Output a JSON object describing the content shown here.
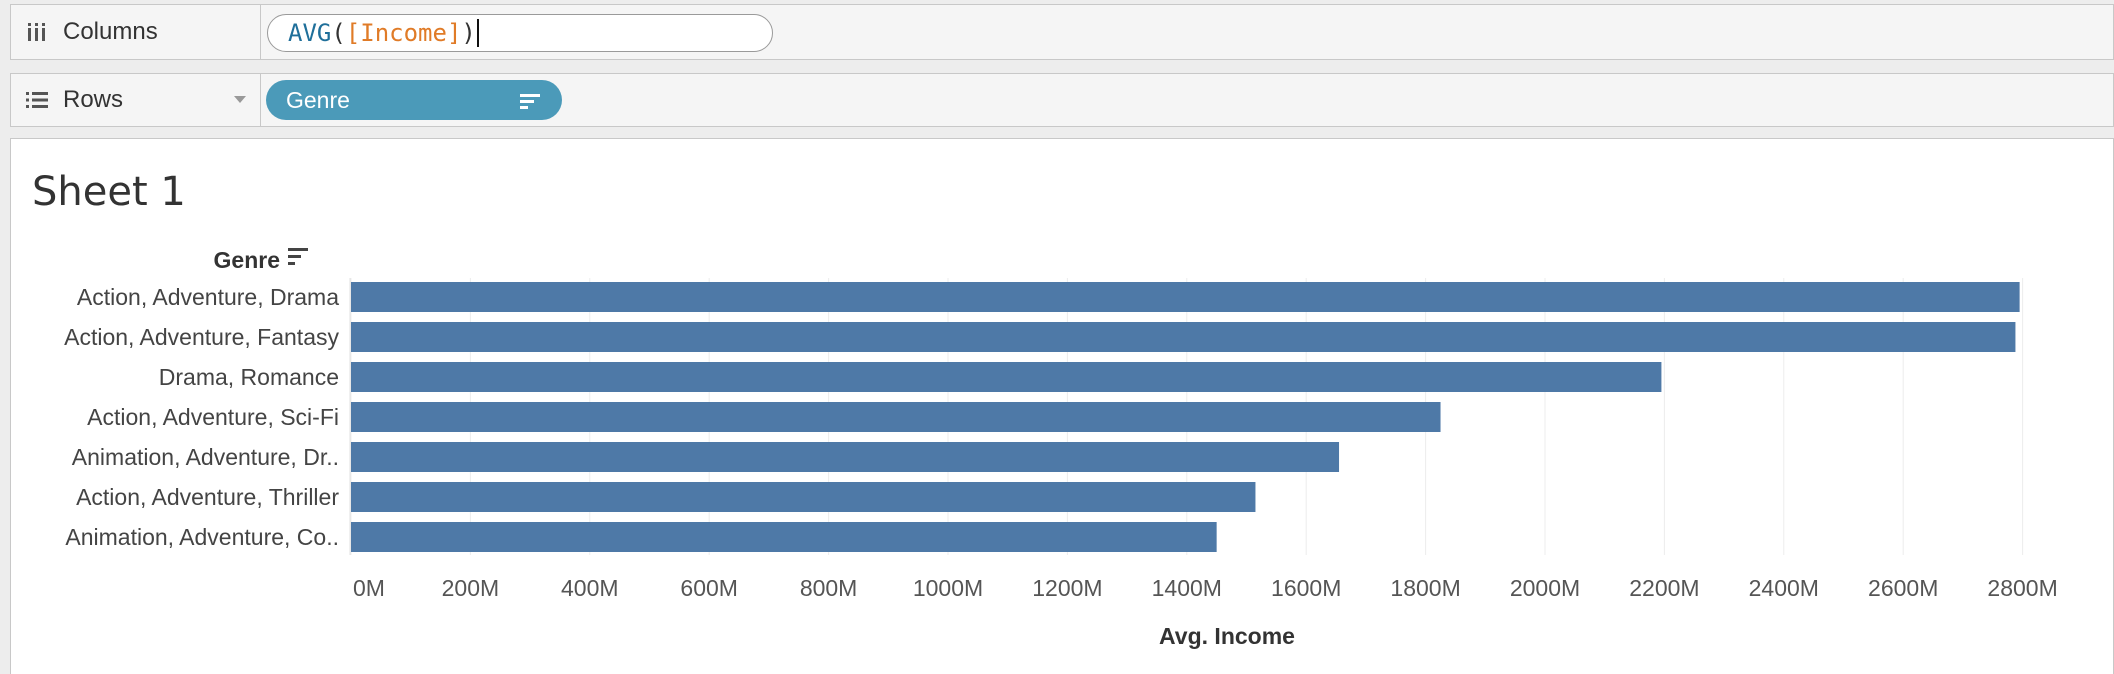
{
  "shelves": {
    "columns": {
      "label": "Columns",
      "icon": "columns-icon",
      "formula": {
        "func": "AVG",
        "open_paren": "(",
        "field": "[Income]",
        "close_paren": ")"
      }
    },
    "rows": {
      "label": "Rows",
      "icon": "rows-icon",
      "pill": {
        "label": "Genre",
        "color": "#4b9ab9",
        "icon": "sort-descending-icon"
      }
    }
  },
  "sheet": {
    "title": "Sheet 1"
  },
  "chart_data": {
    "type": "bar",
    "orientation": "horizontal",
    "row_header": "Genre",
    "categories": [
      "Action, Adventure, Drama",
      "Action, Adventure, Fantasy",
      "Drama, Romance",
      "Action, Adventure, Sci-Fi",
      "Animation, Adventure, Dr..",
      "Action, Adventure, Thriller",
      "Animation, Adventure, Co.."
    ],
    "values": [
      2795,
      2788,
      2195,
      1825,
      1655,
      1515,
      1450
    ],
    "xlabel": "Avg. Income",
    "ylabel": "Genre",
    "xlim": [
      0,
      2900
    ],
    "xticks": [
      0,
      200,
      400,
      600,
      800,
      1000,
      1200,
      1400,
      1600,
      1800,
      2000,
      2200,
      2400,
      2600,
      2800
    ],
    "tick_suffix": "M",
    "bar_color": "#4e79a7",
    "grid": true
  }
}
